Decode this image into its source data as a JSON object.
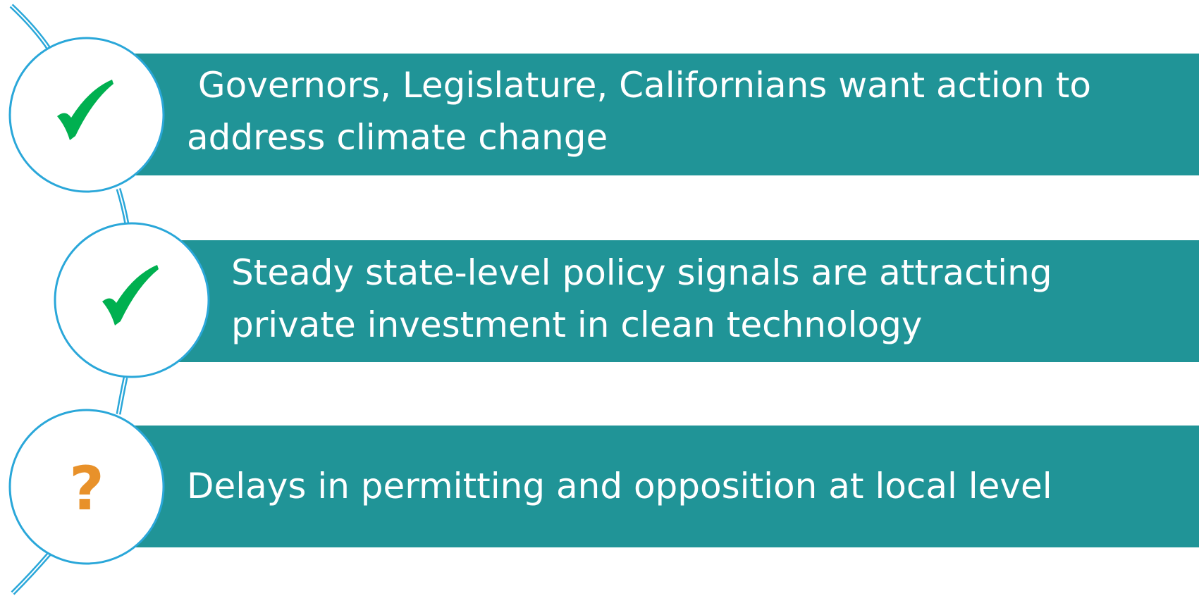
{
  "items": [
    {
      "lines": [
        " Governors, Legislature, Californians want action to",
        "address climate change"
      ]
    },
    {
      "lines": [
        "Steady state-level policy signals are attracting",
        "private investment in clean technology"
      ]
    },
    {
      "lines": [
        "Delays in permitting and opposition at local level"
      ],
      "icon": "?"
    }
  ]
}
